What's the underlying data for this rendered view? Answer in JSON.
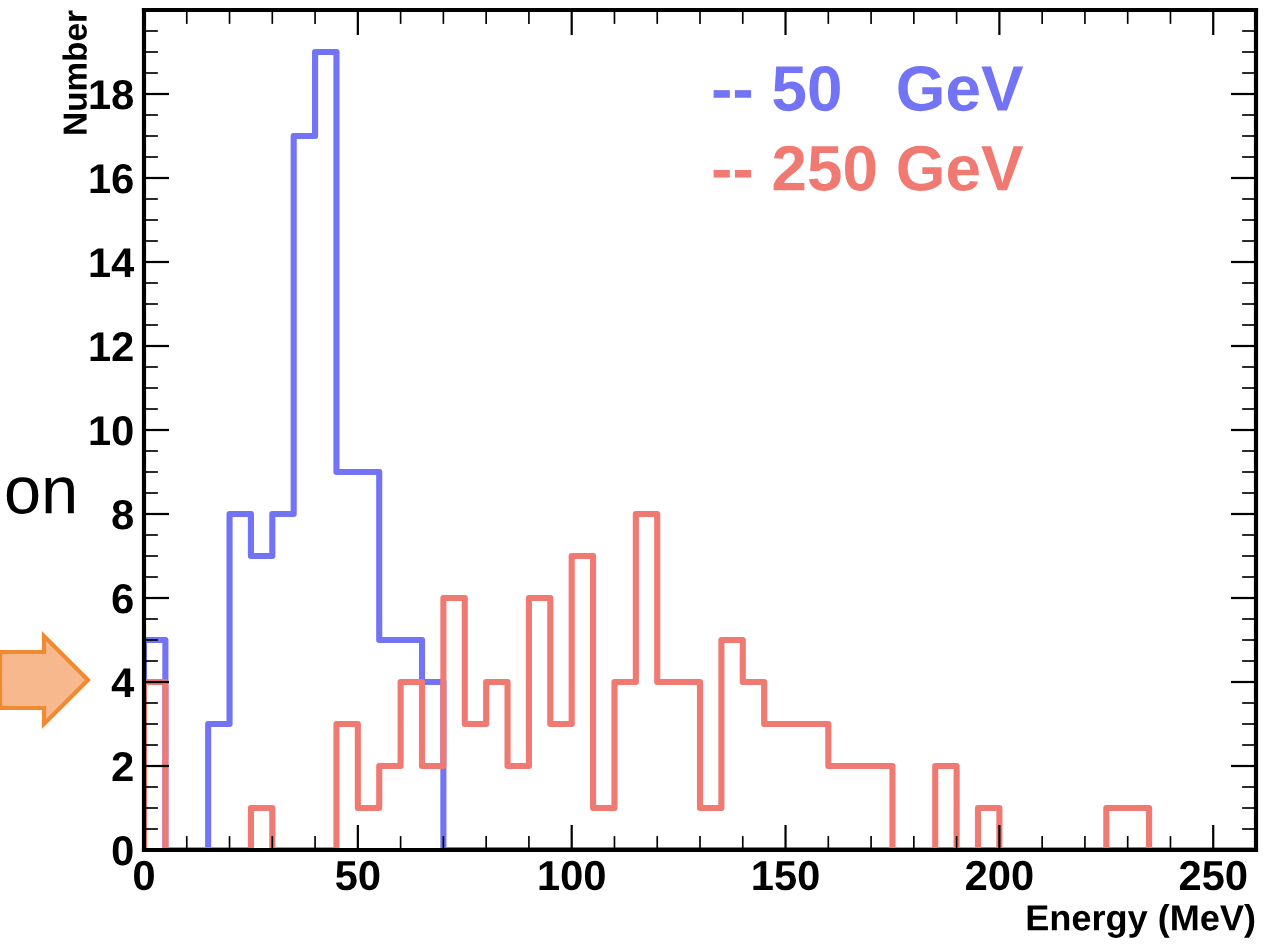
{
  "chart_data": {
    "type": "histogram",
    "xlabel": "Energy (MeV)",
    "ylabel": "Number",
    "bins": [
      0,
      5,
      10,
      15,
      20,
      25,
      30,
      35,
      40,
      45,
      50,
      55,
      60,
      65,
      70,
      75,
      80,
      85,
      90,
      95,
      100,
      105,
      110,
      115,
      120,
      125,
      130,
      135,
      140,
      145,
      150,
      155,
      160,
      165,
      170,
      175,
      180,
      185,
      190,
      195,
      200,
      205,
      210,
      215,
      220,
      225,
      230,
      235,
      240,
      245,
      250,
      255,
      260
    ],
    "series": [
      {
        "name": "-- 50   GeV",
        "color": "#7373f5",
        "values": [
          5,
          0,
          0,
          3,
          8,
          7,
          8,
          17,
          19,
          9,
          9,
          5,
          5,
          4,
          0,
          0,
          0,
          0,
          0,
          0,
          0,
          0,
          0,
          0,
          0,
          0,
          0,
          0,
          0,
          0,
          0,
          0,
          0,
          0,
          0,
          0,
          0,
          0,
          0,
          0,
          0,
          0,
          0,
          0,
          0,
          0,
          0,
          0,
          0,
          0,
          0,
          0
        ]
      },
      {
        "name": "-- 250 GeV",
        "color": "#f07a72",
        "values": [
          4,
          0,
          0,
          0,
          0,
          1,
          0,
          0,
          0,
          3,
          1,
          2,
          4,
          2,
          6,
          3,
          4,
          2,
          6,
          3,
          7,
          1,
          4,
          8,
          4,
          4,
          1,
          5,
          4,
          3,
          3,
          3,
          2,
          2,
          2,
          0,
          0,
          2,
          0,
          1,
          0,
          0,
          0,
          0,
          0,
          1,
          1,
          0,
          0,
          0,
          0,
          0
        ]
      }
    ],
    "xlim": [
      0,
      260
    ],
    "ylim": [
      0,
      20
    ],
    "xticks": [
      0,
      50,
      100,
      150,
      200,
      250
    ],
    "yticks": [
      0,
      2,
      4,
      6,
      8,
      10,
      12,
      14,
      16,
      18
    ],
    "legend": "top right",
    "grid": false,
    "annotations": [
      "on"
    ]
  }
}
